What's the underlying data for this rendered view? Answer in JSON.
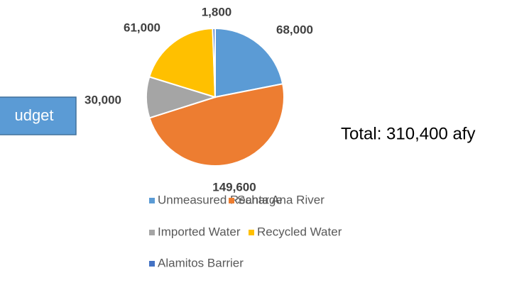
{
  "chart_data": {
    "type": "pie",
    "annotations": [
      "udget",
      "Total: 310,400 afy"
    ],
    "categories": [
      "Unmeasured Recharge",
      "Santa Ana River",
      "Imported Water",
      "Recycled Water",
      "Alamitos Barrier"
    ],
    "values": [
      68000,
      149600,
      30000,
      61000,
      1800
    ],
    "value_labels": [
      "68,000",
      "149,600",
      "30,000",
      "61,000",
      "1,800"
    ],
    "colors": [
      "#5b9bd5",
      "#ed7d31",
      "#a5a5a5",
      "#ffc000",
      "#4472c4"
    ],
    "legend": "bottom"
  }
}
